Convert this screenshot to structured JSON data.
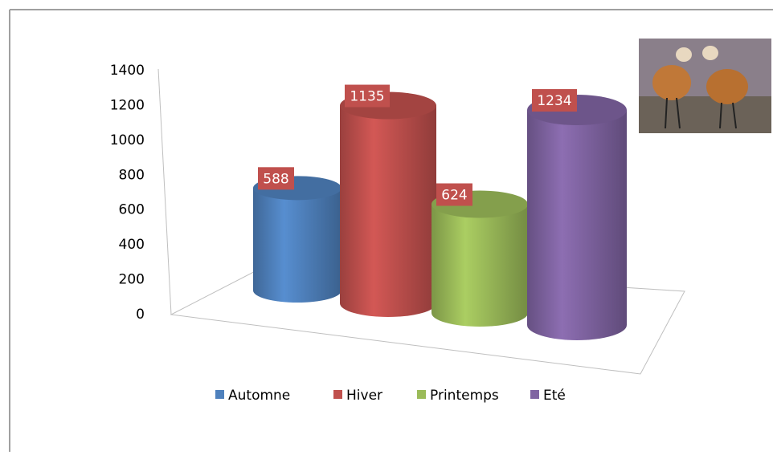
{
  "chart_data": {
    "type": "bar",
    "series": [
      {
        "name": "Automne",
        "color": "#4f81bd",
        "values": [
          588
        ]
      },
      {
        "name": "Hiver",
        "color": "#c0504d",
        "values": [
          1135
        ]
      },
      {
        "name": "Printemps",
        "color": "#9bbb59",
        "values": [
          624
        ]
      },
      {
        "name": "Eté",
        "color": "#8064a2",
        "values": [
          1234
        ]
      }
    ],
    "ylim": [
      0,
      1400
    ],
    "yticks": [
      0,
      200,
      400,
      600,
      800,
      1000,
      1200,
      1400
    ],
    "label_color": "#c0504d",
    "legend": "bottom"
  }
}
